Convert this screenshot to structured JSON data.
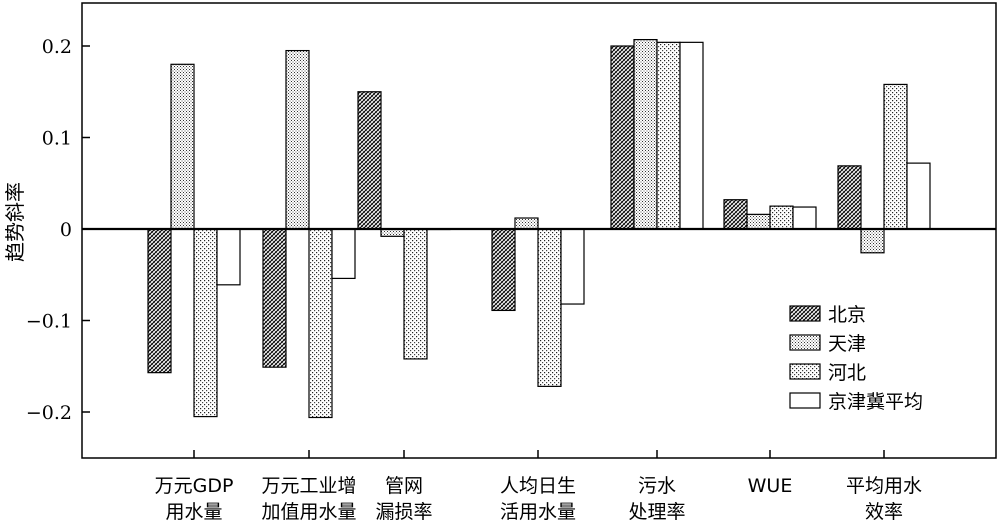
{
  "chart_data": {
    "type": "bar",
    "ylabel": "趋势斜率",
    "ylim": [
      -0.25,
      0.25
    ],
    "yticks": [
      0.2,
      0.1,
      0,
      -0.1,
      -0.2
    ],
    "ytick_labels": [
      "0.2",
      "0.1",
      "0",
      "−0.1",
      "−0.2"
    ],
    "grid": false,
    "legend_position": "bottom-right",
    "categories": [
      [
        "万元GDP",
        "用水量"
      ],
      [
        "万元工业增",
        "加值用水量"
      ],
      [
        "管网",
        "漏损率"
      ],
      [
        "人均日生",
        "活用水量"
      ],
      [
        "污水",
        "处理率"
      ],
      [
        "WUE"
      ],
      [
        "平均用水",
        "效率"
      ]
    ],
    "series": [
      {
        "name": "北京",
        "pattern": "dense-diagonal",
        "values": [
          -0.157,
          -0.151,
          0.15,
          -0.089,
          0.2,
          0.032,
          0.069
        ]
      },
      {
        "name": "天津",
        "pattern": "fine-dots",
        "values": [
          0.18,
          0.195,
          -0.008,
          0.012,
          0.207,
          0.016,
          -0.026
        ]
      },
      {
        "name": "河北",
        "pattern": "medium-dots",
        "values": [
          -0.205,
          -0.206,
          -0.142,
          -0.172,
          0.204,
          0.025,
          0.158
        ]
      },
      {
        "name": "京津冀平均",
        "pattern": "none",
        "values": [
          -0.061,
          -0.054,
          0.0,
          -0.082,
          0.204,
          0.024,
          0.072
        ]
      }
    ]
  }
}
